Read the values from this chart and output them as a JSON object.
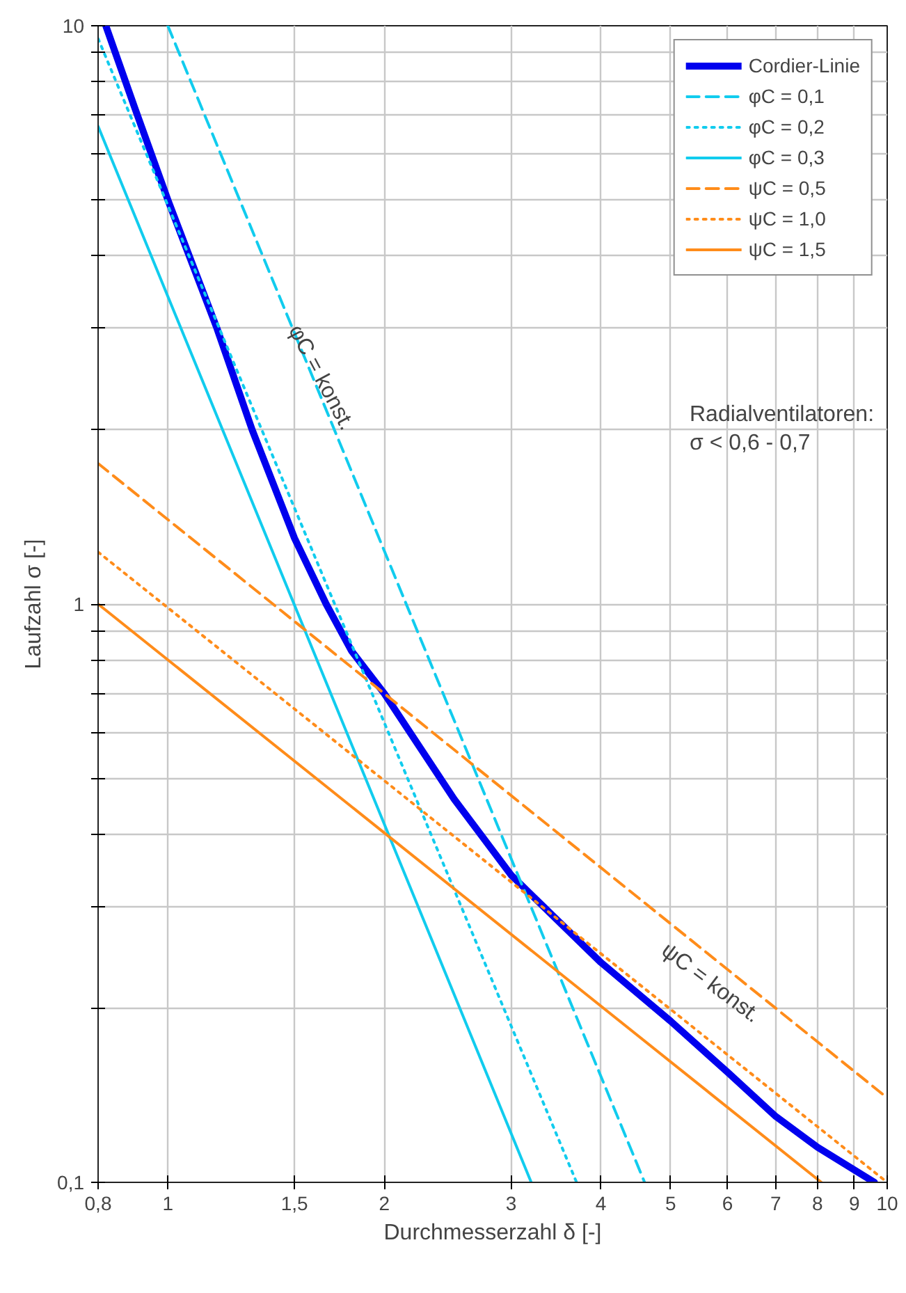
{
  "chart_data": {
    "type": "line",
    "xlabel": "Durchmesserzahl δ [-]",
    "ylabel": "Laufzahl σ [-]",
    "log": "xy",
    "grid": true,
    "legend": "top right",
    "xlim": [
      0.8,
      10
    ],
    "ylim": [
      0.1,
      10
    ],
    "xticks": [
      {
        "value": 0.8,
        "label": "0,8"
      },
      1,
      {
        "value": 1.5,
        "label": "1,5"
      },
      2,
      3,
      4,
      5,
      6,
      7,
      8,
      9,
      10
    ],
    "yticks": [
      {
        "value": 0.1,
        "label": "0,1"
      },
      {
        "value": 0.2,
        "label": null
      },
      {
        "value": 0.3,
        "label": null
      },
      {
        "value": 0.4,
        "label": null
      },
      {
        "value": 0.5,
        "label": null
      },
      {
        "value": 0.6,
        "label": null
      },
      {
        "value": 0.7,
        "label": null
      },
      {
        "value": 0.8,
        "label": null
      },
      {
        "value": 0.9,
        "label": null
      },
      1,
      {
        "value": 2,
        "label": null
      },
      {
        "value": 3,
        "label": null
      },
      {
        "value": 4,
        "label": null
      },
      {
        "value": 5,
        "label": null
      },
      {
        "value": 6,
        "label": null
      },
      {
        "value": 7,
        "label": null
      },
      {
        "value": 8,
        "label": null
      },
      {
        "value": 9,
        "label": null
      },
      10
    ],
    "series": [
      {
        "name": "Cordier-Linie",
        "color": "#0000ee",
        "line_style": "solid",
        "x": [
          0.82,
          0.9,
          1,
          1.17,
          1.31,
          1.5,
          1.66,
          1.8,
          2,
          2.5,
          3,
          4,
          5,
          6,
          7,
          8,
          9.6
        ],
        "values": [
          10,
          7.2,
          5,
          3,
          2,
          1.3,
          1,
          0.83,
          0.7,
          0.46,
          0.34,
          0.24,
          0.19,
          0.155,
          0.13,
          0.115,
          0.1
        ]
      },
      {
        "name": "φC = 0,1",
        "color": "#11ccee",
        "line_style": "dashed",
        "x": [
          1,
          4.6
        ],
        "values": [
          10,
          0.1
        ]
      },
      {
        "name": "φC = 0,2",
        "color": "#11ccee",
        "line_style": "dotted",
        "x": [
          0.8,
          3.7
        ],
        "values": [
          9.5,
          0.1
        ]
      },
      {
        "name": "φC = 0,3",
        "color": "#11ccee",
        "line_style": "solid",
        "x": [
          0.8,
          3.2
        ],
        "values": [
          6.7,
          0.1
        ]
      },
      {
        "name": "ψC = 0,5",
        "color": "#ff8c1a",
        "line_style": "dashed",
        "x": [
          0.8,
          10
        ],
        "values": [
          1.75,
          0.14
        ]
      },
      {
        "name": "ψC = 1,0",
        "color": "#ff8c1a",
        "line_style": "dotted",
        "x": [
          0.8,
          10
        ],
        "values": [
          1.23,
          0.1
        ]
      },
      {
        "name": "ψC = 1,5",
        "color": "#ff8c1a",
        "line_style": "solid",
        "x": [
          0.8,
          8.1
        ],
        "values": [
          1.0,
          0.1
        ]
      }
    ],
    "annotations": [
      "φC = konst.",
      "ψC = konst.",
      "Radialventilatoren:\nσ < 0,6 - 0,7"
    ]
  }
}
